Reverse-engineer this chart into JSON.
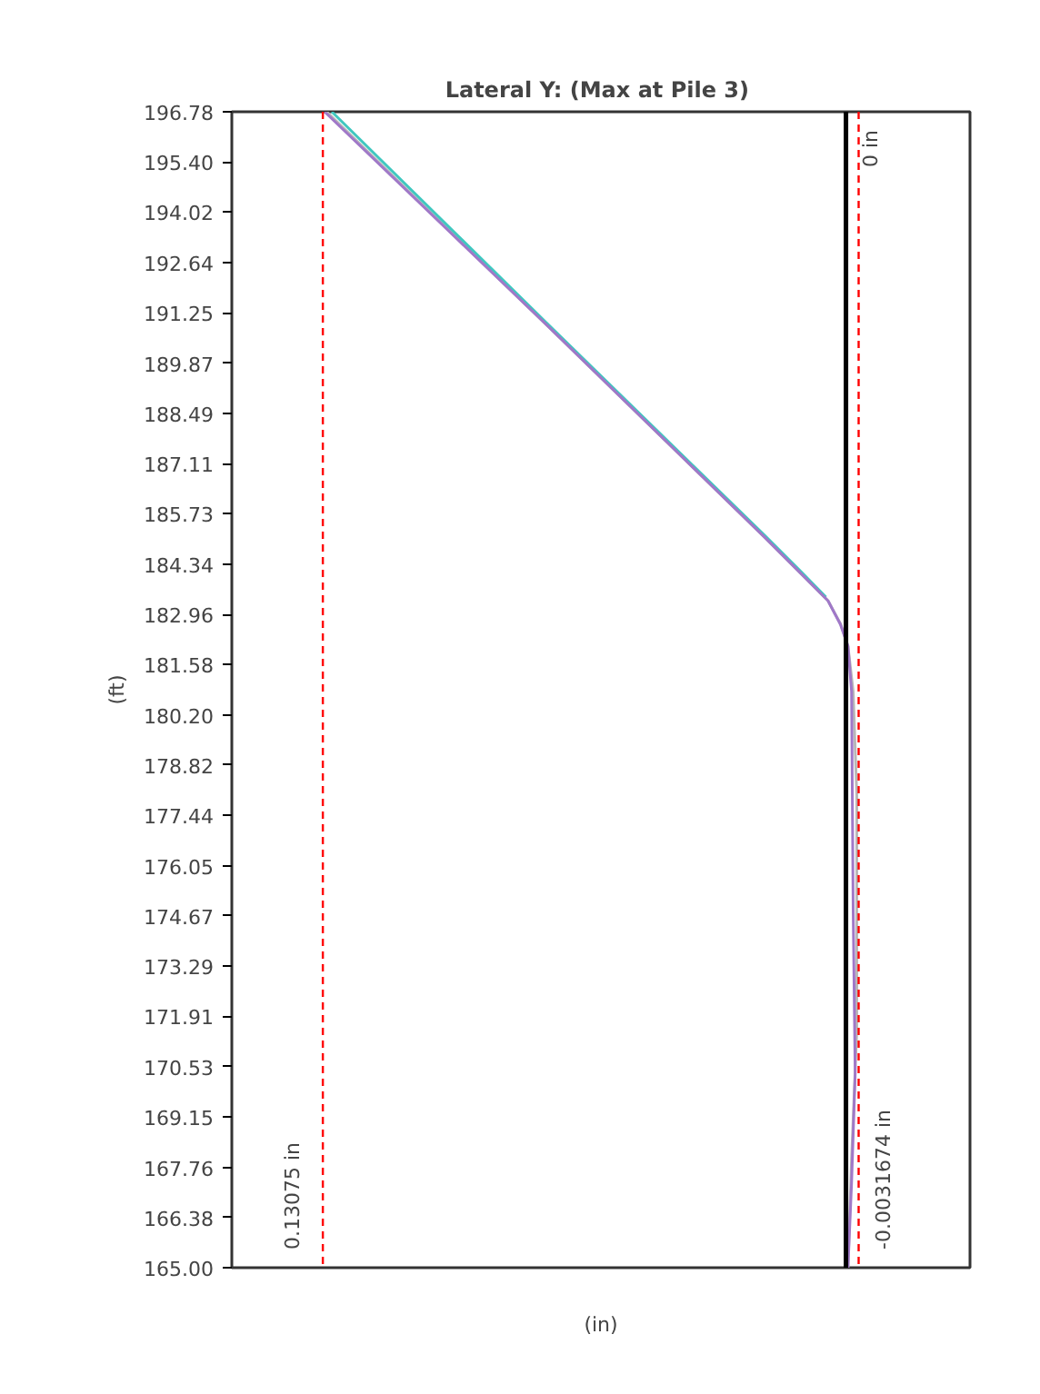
{
  "chart_data": {
    "type": "line",
    "title": "Lateral Y:  (Max at Pile 3)",
    "xlabel": "(in)",
    "ylabel": "(ft)",
    "xlim": [
      0.1535,
      -0.031
    ],
    "ylim": [
      165.0,
      196.78
    ],
    "yticks": [
      {
        "value": 165.0,
        "label": "165.00"
      },
      {
        "value": 166.38,
        "label": "166.38"
      },
      {
        "value": 167.76,
        "label": "167.76"
      },
      {
        "value": 169.15,
        "label": "169.15"
      },
      {
        "value": 170.53,
        "label": "170.53"
      },
      {
        "value": 171.91,
        "label": "171.91"
      },
      {
        "value": 173.29,
        "label": "173.29"
      },
      {
        "value": 174.67,
        "label": "174.67"
      },
      {
        "value": 176.05,
        "label": "176.05"
      },
      {
        "value": 177.44,
        "label": "177.44"
      },
      {
        "value": 178.82,
        "label": "178.82"
      },
      {
        "value": 180.2,
        "label": "180.20"
      },
      {
        "value": 181.58,
        "label": "181.58"
      },
      {
        "value": 182.96,
        "label": "182.96"
      },
      {
        "value": 184.34,
        "label": "184.34"
      },
      {
        "value": 185.73,
        "label": "185.73"
      },
      {
        "value": 187.11,
        "label": "187.11"
      },
      {
        "value": 188.49,
        "label": "188.49"
      },
      {
        "value": 189.87,
        "label": "189.87"
      },
      {
        "value": 191.25,
        "label": "191.25"
      },
      {
        "value": 192.64,
        "label": "192.64"
      },
      {
        "value": 194.02,
        "label": "194.02"
      },
      {
        "value": 195.4,
        "label": "195.40"
      },
      {
        "value": 196.78,
        "label": "196.78"
      }
    ],
    "tick_labels": "y",
    "grid": false,
    "marker": "none",
    "line_style": "solid",
    "series": [
      {
        "color": "#b8b8b8",
        "x": [
          0.1298,
          0.0749,
          0.0204,
          0.0113,
          0.0045,
          0.0013,
          -0.0005,
          -0.0018,
          -0.0027,
          -0.0027,
          -0.0014,
          -0.0005
        ],
        "values": [
          196.78,
          190.93,
          185.09,
          184.09,
          183.34,
          182.69,
          182.09,
          180.84,
          178.0,
          171.5,
          168.0,
          165.0
        ]
      },
      {
        "color": "#40c8c0",
        "x": [
          0.1285,
          0.0749,
          0.0204,
          0.0113,
          0.005
        ],
        "values": [
          196.78,
          190.98,
          185.14,
          184.14,
          183.44
        ]
      },
      {
        "color": "#a078c8",
        "x": [
          0.1303,
          0.0749,
          0.0204,
          0.0113,
          0.0045,
          0.0014,
          -0.0005,
          -0.0014,
          -0.0018,
          -0.0023,
          -0.0014,
          -0.0005
        ],
        "values": [
          196.78,
          190.93,
          185.09,
          184.09,
          183.34,
          182.69,
          182.09,
          180.84,
          174.84,
          170.34,
          167.34,
          165.0
        ]
      }
    ],
    "ref_lines": [
      {
        "axis": "x",
        "value": 0.13075,
        "label": "0.13075 in",
        "color": "#ff0000",
        "line_style": "dashed"
      },
      {
        "axis": "x",
        "value": -0.0031674,
        "label": "-0.0031674 in",
        "color": "#ff0000",
        "line_style": "dashed"
      },
      {
        "axis": "x",
        "value": 0,
        "label": "0 in",
        "color": "#000000",
        "line_style": "solid"
      }
    ]
  }
}
